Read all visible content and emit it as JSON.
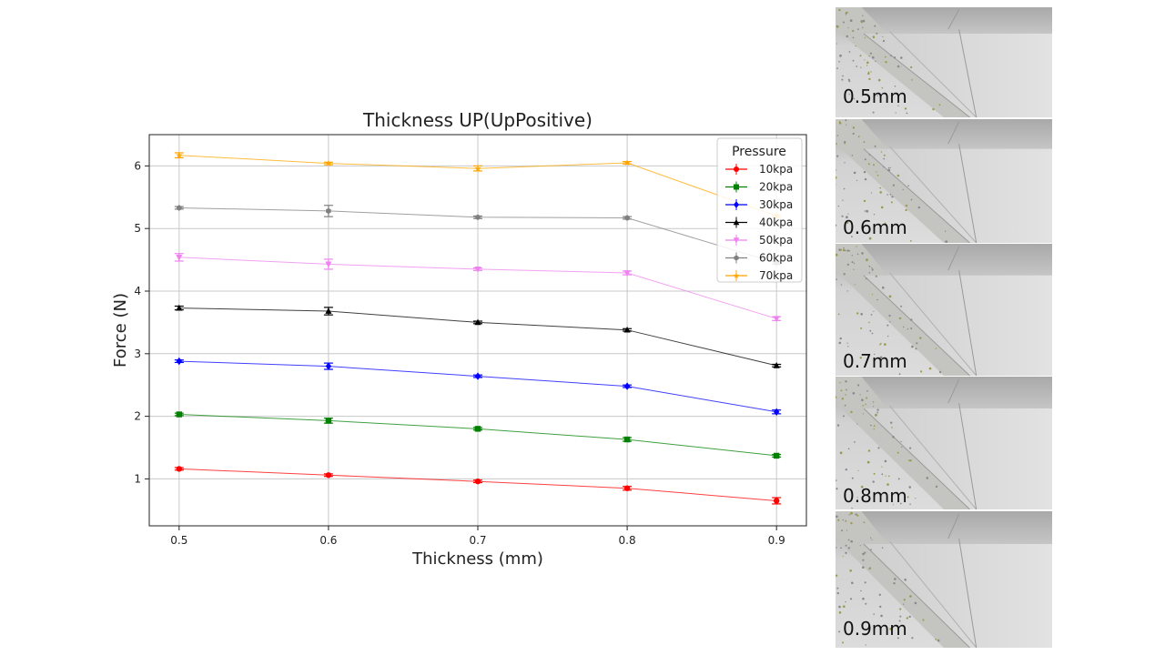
{
  "chart_data": {
    "type": "line",
    "title": "Thickness UP(UpPositive)",
    "xlabel": "Thickness (mm)",
    "ylabel": "Force (N)",
    "xlim": [
      0.48,
      0.92
    ],
    "ylim": [
      0.25,
      6.5
    ],
    "x_ticks": [
      "0.5",
      "0.6",
      "0.7",
      "0.8",
      "0.9"
    ],
    "y_ticks": [
      "1",
      "2",
      "3",
      "4",
      "5",
      "6"
    ],
    "grid": true,
    "legend": {
      "title": "Pressure",
      "position": "top-right"
    },
    "x": [
      0.5,
      0.6,
      0.7,
      0.8,
      0.9
    ],
    "series": [
      {
        "name": "10kpa",
        "color": "#ff0000",
        "marker": "circle",
        "values": [
          1.16,
          1.06,
          0.96,
          0.85,
          0.65
        ],
        "errors": [
          0.02,
          0.02,
          0.02,
          0.03,
          0.05
        ]
      },
      {
        "name": "20kpa",
        "color": "#008000",
        "marker": "square",
        "values": [
          2.03,
          1.93,
          1.8,
          1.63,
          1.37
        ],
        "errors": [
          0.02,
          0.04,
          0.02,
          0.03,
          0.02
        ]
      },
      {
        "name": "30kpa",
        "color": "#0000ff",
        "marker": "diamond",
        "values": [
          2.88,
          2.8,
          2.64,
          2.48,
          2.07
        ],
        "errors": [
          0.02,
          0.05,
          0.02,
          0.02,
          0.03
        ]
      },
      {
        "name": "40kpa",
        "color": "#000000",
        "marker": "triangle-up",
        "values": [
          3.73,
          3.68,
          3.5,
          3.38,
          2.81
        ],
        "errors": [
          0.03,
          0.06,
          0.02,
          0.02,
          0.02
        ]
      },
      {
        "name": "50kpa",
        "color": "#ee82ee",
        "marker": "triangle-down",
        "values": [
          4.54,
          4.43,
          4.35,
          4.29,
          3.56
        ],
        "errors": [
          0.06,
          0.08,
          0.02,
          0.03,
          0.03
        ]
      },
      {
        "name": "60kpa",
        "color": "#808080",
        "marker": "hexagon",
        "values": [
          5.33,
          5.28,
          5.18,
          5.17,
          4.45
        ],
        "errors": [
          0.02,
          0.09,
          0.02,
          0.02,
          0.02
        ]
      },
      {
        "name": "70kpa",
        "color": "#ffa500",
        "marker": "star",
        "values": [
          6.17,
          6.04,
          5.96,
          6.05,
          5.2
        ],
        "errors": [
          0.04,
          0.02,
          0.04,
          0.02,
          0.02
        ]
      }
    ]
  },
  "thumbnails": [
    {
      "label": "0.5mm"
    },
    {
      "label": "0.6mm"
    },
    {
      "label": "0.7mm"
    },
    {
      "label": "0.8mm"
    },
    {
      "label": "0.9mm"
    }
  ]
}
